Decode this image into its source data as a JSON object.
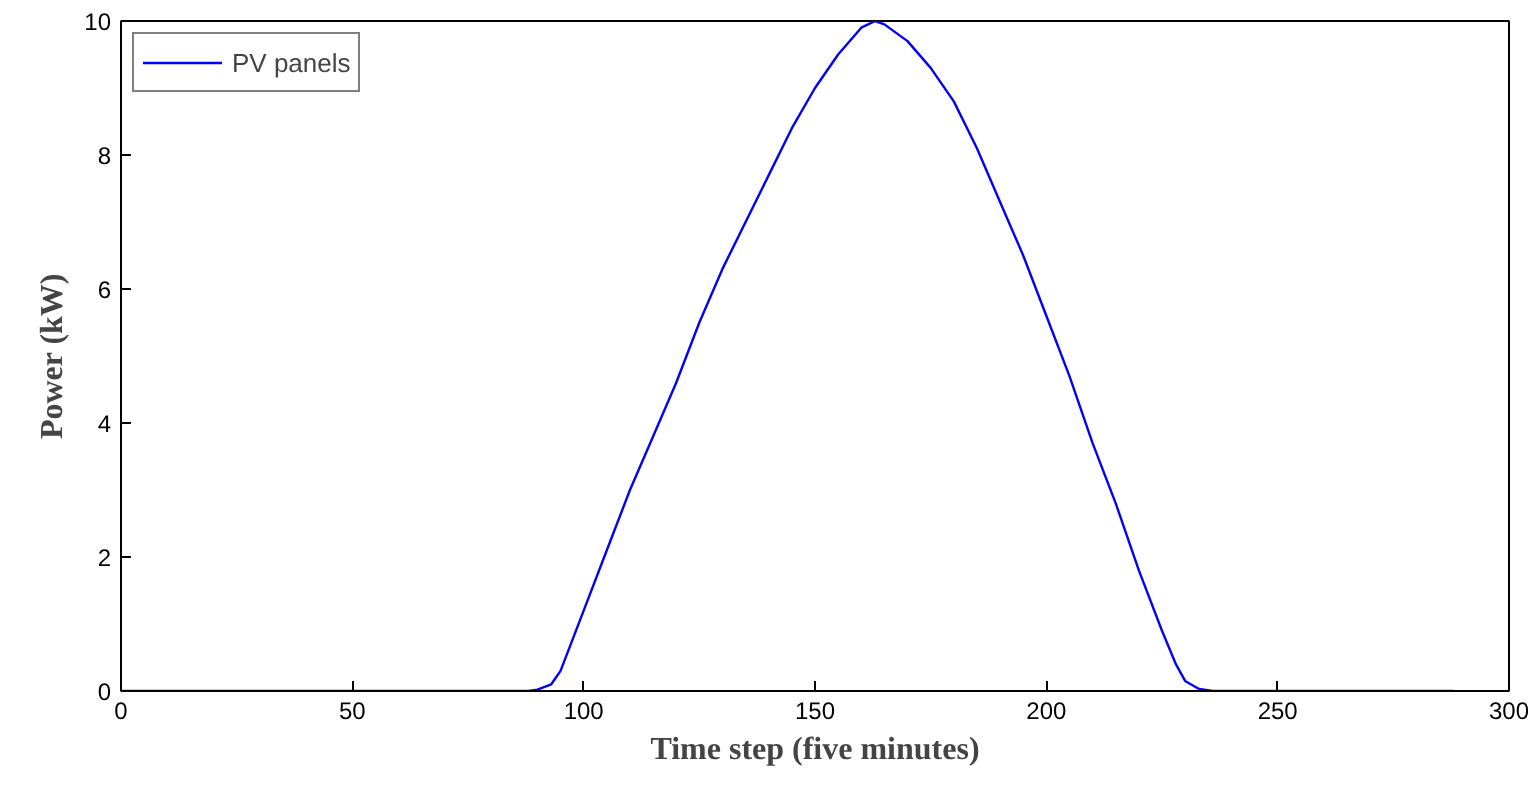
{
  "chart_data": {
    "type": "line",
    "xlabel": "Time step (five minutes)",
    "ylabel": "Power (kW)",
    "xlim": [
      0,
      300
    ],
    "ylim": [
      0,
      10
    ],
    "xticks": [
      0,
      50,
      100,
      150,
      200,
      250,
      300
    ],
    "yticks": [
      0,
      2,
      4,
      6,
      8,
      10
    ],
    "grid": false,
    "legend": "top left",
    "marker": "none",
    "line_style": "solid",
    "series": [
      {
        "name": "PV panels",
        "color": "#0000ff",
        "x": [
          0,
          88,
          90,
          93,
          95,
          100,
          105,
          110,
          115,
          120,
          125,
          130,
          135,
          140,
          145,
          150,
          155,
          160,
          163,
          165,
          170,
          175,
          180,
          185,
          190,
          195,
          200,
          205,
          210,
          215,
          220,
          225,
          228,
          230,
          233,
          236,
          288
        ],
        "values": [
          0,
          0,
          0.02,
          0.1,
          0.3,
          1.2,
          2.1,
          3.0,
          3.8,
          4.6,
          5.5,
          6.3,
          7.0,
          7.7,
          8.4,
          9.0,
          9.5,
          9.9,
          10.0,
          9.95,
          9.7,
          9.3,
          8.8,
          8.1,
          7.3,
          6.5,
          5.6,
          4.7,
          3.7,
          2.8,
          1.8,
          0.9,
          0.4,
          0.15,
          0.03,
          0,
          0
        ]
      }
    ]
  }
}
